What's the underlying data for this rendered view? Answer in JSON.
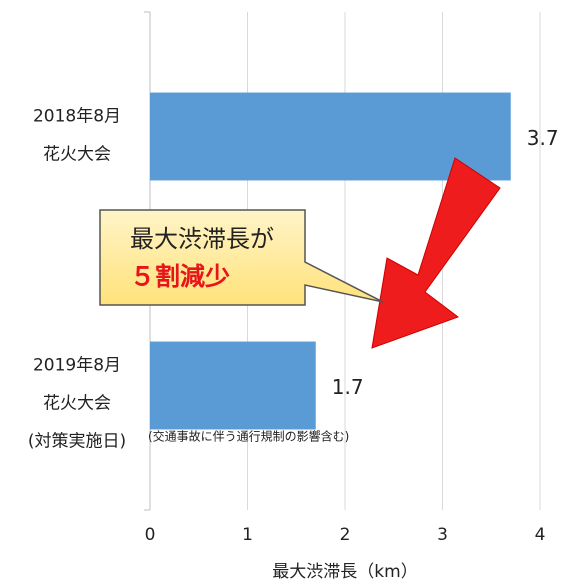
{
  "chart_data": {
    "type": "bar",
    "orientation": "horizontal",
    "categories": [
      [
        "2018年8月",
        "花火大会"
      ],
      [
        "2019年8月",
        "花火大会",
        "(対策実施日)"
      ]
    ],
    "values": [
      3.7,
      1.7
    ],
    "color": "#5b9bd5",
    "xlim": [
      0,
      4
    ],
    "xticks": [
      0,
      1,
      2,
      3,
      4
    ],
    "grid": true,
    "x_label": "最大渋滞長（km）",
    "annotations": {
      "callout": [
        "最大渋滞長が",
        "５割減少"
      ],
      "note": "(交通事故に伴う通行規制の影響含む)"
    }
  }
}
